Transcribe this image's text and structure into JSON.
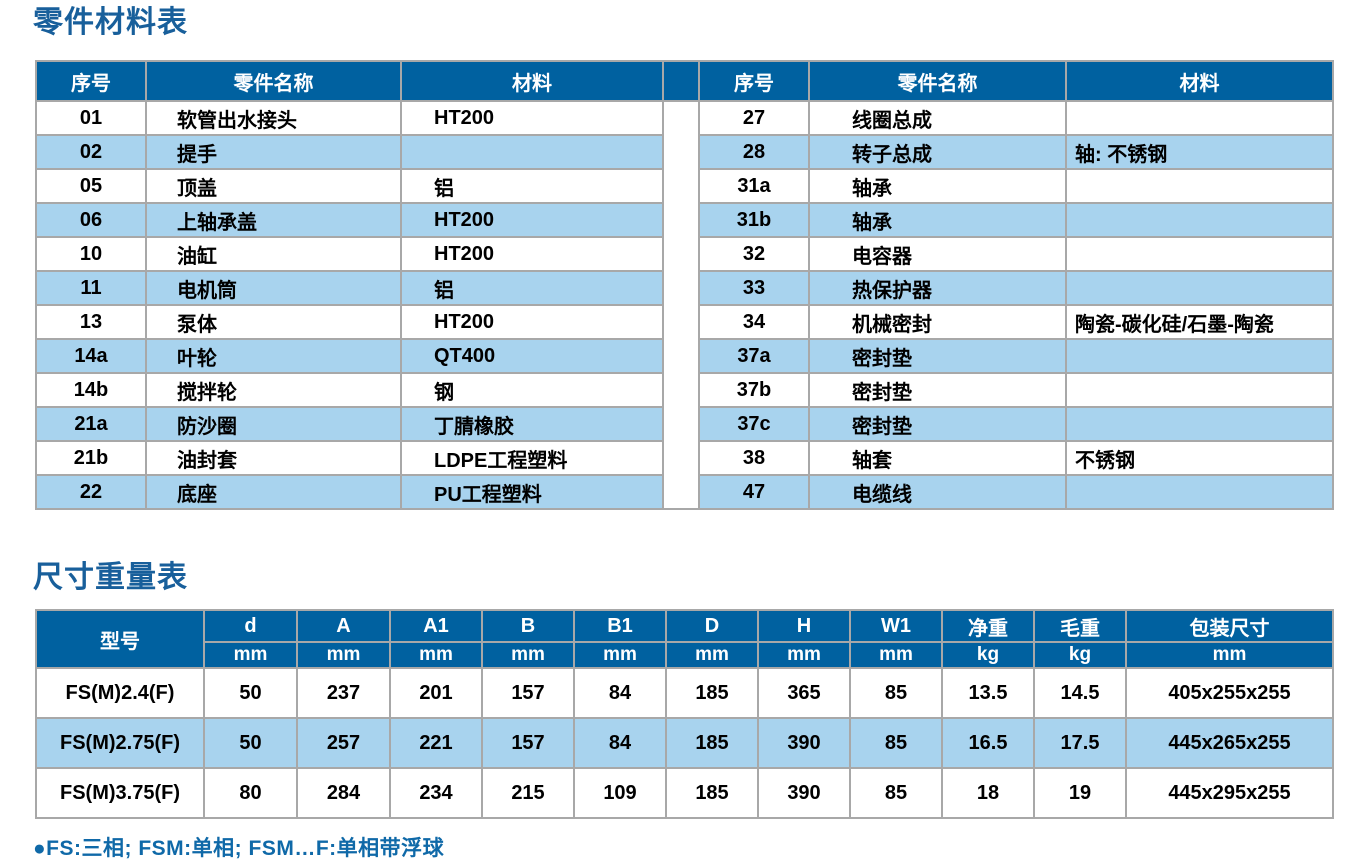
{
  "titles": {
    "parts": "零件材料表",
    "size": "尺寸重量表"
  },
  "parts_table": {
    "headers": [
      "序号",
      "零件名称",
      "材料"
    ],
    "left_rows": [
      {
        "no": "01",
        "name": "软管出水接头",
        "material": "HT200"
      },
      {
        "no": "02",
        "name": "提手",
        "material": ""
      },
      {
        "no": "05",
        "name": "顶盖",
        "material": "铝"
      },
      {
        "no": "06",
        "name": "上轴承盖",
        "material": "HT200"
      },
      {
        "no": "10",
        "name": "油缸",
        "material": "HT200"
      },
      {
        "no": "11",
        "name": "电机筒",
        "material": "铝"
      },
      {
        "no": "13",
        "name": "泵体",
        "material": "HT200"
      },
      {
        "no": "14a",
        "name": "叶轮",
        "material": "QT400"
      },
      {
        "no": "14b",
        "name": "搅拌轮",
        "material": "钢"
      },
      {
        "no": "21a",
        "name": "防沙圈",
        "material": "丁腈橡胶"
      },
      {
        "no": "21b",
        "name": "油封套",
        "material": "LDPE工程塑料"
      },
      {
        "no": "22",
        "name": "底座",
        "material": "PU工程塑料"
      }
    ],
    "right_rows": [
      {
        "no": "27",
        "name": "线圈总成",
        "material": ""
      },
      {
        "no": "28",
        "name": "转子总成",
        "material": "轴: 不锈钢"
      },
      {
        "no": "31a",
        "name": "轴承",
        "material": ""
      },
      {
        "no": "31b",
        "name": "轴承",
        "material": ""
      },
      {
        "no": "32",
        "name": "电容器",
        "material": ""
      },
      {
        "no": "33",
        "name": "热保护器",
        "material": ""
      },
      {
        "no": "34",
        "name": "机械密封",
        "material": "陶瓷-碳化硅/石墨-陶瓷"
      },
      {
        "no": "37a",
        "name": "密封垫",
        "material": ""
      },
      {
        "no": "37b",
        "name": "密封垫",
        "material": ""
      },
      {
        "no": "37c",
        "name": "密封垫",
        "material": ""
      },
      {
        "no": "38",
        "name": "轴套",
        "material": "不锈钢"
      },
      {
        "no": "47",
        "name": "电缆线",
        "material": ""
      }
    ]
  },
  "size_table": {
    "model_header": "型号",
    "columns": [
      {
        "label": "d",
        "unit": "mm"
      },
      {
        "label": "A",
        "unit": "mm"
      },
      {
        "label": "A1",
        "unit": "mm"
      },
      {
        "label": "B",
        "unit": "mm"
      },
      {
        "label": "B1",
        "unit": "mm"
      },
      {
        "label": "D",
        "unit": "mm"
      },
      {
        "label": "H",
        "unit": "mm"
      },
      {
        "label": "W1",
        "unit": "mm"
      },
      {
        "label": "净重",
        "unit": "kg"
      },
      {
        "label": "毛重",
        "unit": "kg"
      },
      {
        "label": "包装尺寸",
        "unit": "mm"
      }
    ],
    "rows": [
      {
        "model": "FS(M)2.4(F)",
        "values": [
          "50",
          "237",
          "201",
          "157",
          "84",
          "185",
          "365",
          "85",
          "13.5",
          "14.5",
          "405x255x255"
        ]
      },
      {
        "model": "FS(M)2.75(F)",
        "values": [
          "50",
          "257",
          "221",
          "157",
          "84",
          "185",
          "390",
          "85",
          "16.5",
          "17.5",
          "445x265x255"
        ]
      },
      {
        "model": "FS(M)3.75(F)",
        "values": [
          "80",
          "284",
          "234",
          "215",
          "109",
          "185",
          "390",
          "85",
          "18",
          "19",
          "445x295x255"
        ]
      }
    ]
  },
  "footnote": "●FS:三相; FSM:单相; FSM…F:单相带浮球",
  "colors": {
    "header_blue": "#0061a0",
    "row_blue": "#a8d3ee",
    "border_gray": "#a8a8a8",
    "title_blue": "#185f9b",
    "footnote_blue": "#0f69a8"
  }
}
